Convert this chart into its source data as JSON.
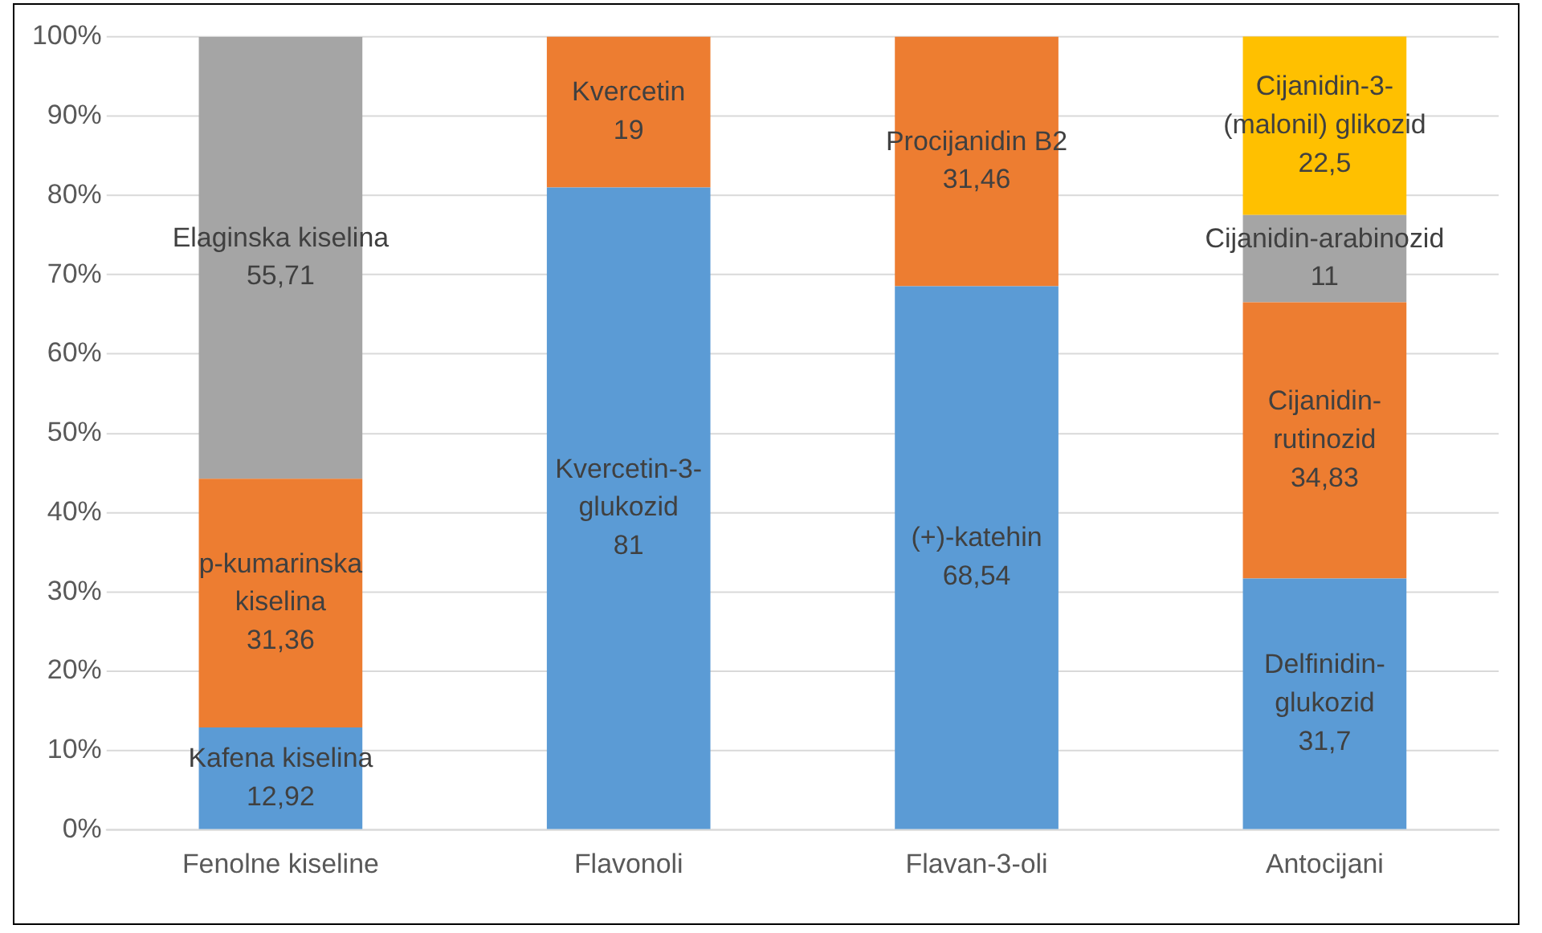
{
  "chart_data": {
    "type": "bar",
    "stacked": true,
    "categories": [
      "Fenolne kiseline",
      "Flavonoli",
      "Flavan-3-oli",
      "Antocijani"
    ],
    "series": [
      {
        "color": "#5b9bd5",
        "values": [
          12.92,
          81,
          68.54,
          31.7
        ],
        "value_labels": [
          "Kafena kiselina\n12,92",
          "Kvercetin-3-\nglukozid\n81",
          "(+)-katehin\n68,54",
          "Delfinidin-\nglukozid\n31,7"
        ]
      },
      {
        "color": "#ed7d31",
        "values": [
          31.36,
          19,
          31.46,
          34.83
        ],
        "value_labels": [
          "p-kumarinska\nkiselina\n31,36",
          "Kvercetin\n19",
          "Procijanidin B2\n31,46",
          "Cijanidin-\nrutinozid\n34,83"
        ]
      },
      {
        "color": "#a5a5a5",
        "values": [
          55.71,
          null,
          null,
          11
        ],
        "value_labels": [
          "Elaginska kiselina\n55,71",
          null,
          null,
          "Cijanidin-arabinozid\n11"
        ]
      },
      {
        "color": "#ffc000",
        "values": [
          null,
          null,
          null,
          22.5
        ],
        "value_labels": [
          null,
          null,
          null,
          "Cijanidin-3-\n(malonil) glikozid\n22,5"
        ]
      }
    ],
    "ylim": [
      0,
      100
    ],
    "yticks": [
      {
        "value": 0,
        "label": "0%"
      },
      {
        "value": 10,
        "label": "10%"
      },
      {
        "value": 20,
        "label": "20%"
      },
      {
        "value": 30,
        "label": "30%"
      },
      {
        "value": 40,
        "label": "40%"
      },
      {
        "value": 50,
        "label": "50%"
      },
      {
        "value": 60,
        "label": "60%"
      },
      {
        "value": 70,
        "label": "70%"
      },
      {
        "value": 80,
        "label": "80%"
      },
      {
        "value": 90,
        "label": "90%"
      },
      {
        "value": 100,
        "label": "100%"
      }
    ],
    "grid": "y",
    "legend": false
  }
}
